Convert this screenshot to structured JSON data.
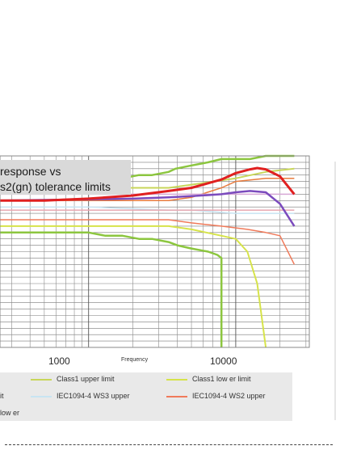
{
  "title_lines": [
    "response vs",
    "s2(gn) tolerance limits"
  ],
  "axis": {
    "xlabel": "Frequency",
    "x_ticks": [
      "1000",
      "10000"
    ]
  },
  "legend": [
    {
      "label": "Class1 upper limit",
      "color": "#c8d65a"
    },
    {
      "label": "Class1 low er limit",
      "color": "#d6e34a"
    },
    {
      "label": "IEC1094-4 WS3 upper",
      "color": "#c8e4f2"
    },
    {
      "label": "IEC1094-4 WS2 upper",
      "color": "#f07a5a"
    },
    {
      "label": "it",
      "color": ""
    },
    {
      "label": "low er",
      "color": ""
    }
  ],
  "chart_data": {
    "type": "line",
    "title": "response vs s2(gn) tolerance limits",
    "xlabel": "Frequency",
    "ylabel": "",
    "x_scale": "log",
    "xlim": [
      250,
      31623
    ],
    "ylim": [
      -20,
      10
    ],
    "grid": true,
    "series": [
      {
        "name": "",
        "color": "#8cc63f",
        "width": 2.5,
        "x": [
          250,
          900,
          1000,
          1300,
          1700,
          2200,
          2700,
          3500,
          3900,
          5000,
          6500,
          8000,
          10000,
          12500,
          16000,
          25000
        ],
        "y": [
          6,
          6,
          6,
          6.5,
          6.5,
          7,
          7,
          7.5,
          8,
          8.5,
          9,
          9.5,
          9.5,
          9.5,
          10,
          10
        ]
      },
      {
        "name": "",
        "color": "#8cc63f",
        "width": 2.5,
        "x": [
          250,
          900,
          1000,
          1300,
          1700,
          2200,
          2700,
          3500,
          4000,
          5000,
          6500,
          7500,
          8000,
          8000
        ],
        "y": [
          -2,
          -2,
          -2,
          -2.5,
          -2.5,
          -3,
          -3,
          -3.5,
          -4,
          -4.5,
          -5,
          -5.5,
          -6,
          -20
        ]
      },
      {
        "name": "Class1 upper limit",
        "color": "#c8d65a",
        "width": 2,
        "x": [
          250,
          3500,
          5000,
          10000,
          16000,
          25000
        ],
        "y": [
          5,
          5,
          5.5,
          6.5,
          7.5,
          8
        ]
      },
      {
        "name": "Class1 low er limit",
        "color": "#d6e34a",
        "width": 2,
        "x": [
          250,
          3500,
          5000,
          8000,
          10000,
          12000,
          14000,
          16000
        ],
        "y": [
          -1,
          -1,
          -1.5,
          -2.5,
          -3,
          -5,
          -10,
          -20
        ]
      },
      {
        "name": "IEC1094-4 WS3 upper",
        "color": "#c8e4f2",
        "width": 1.5,
        "x": [
          250,
          1000,
          3500,
          5000,
          10000,
          16000,
          25000
        ],
        "y": [
          2,
          2,
          1.5,
          1.5,
          1,
          1,
          1
        ]
      },
      {
        "name": "IEC1094-4 WS2 upper",
        "color": "#f07a5a",
        "width": 1.5,
        "x": [
          250,
          3500,
          5000,
          8000,
          12000,
          16000,
          20000,
          25000
        ],
        "y": [
          0,
          0,
          -0.5,
          -1,
          -1.5,
          -2,
          -2.5,
          -7
        ]
      },
      {
        "name": "",
        "color": "#e87b3e",
        "width": 1.5,
        "x": [
          250,
          3500,
          5000,
          8000,
          10000,
          16000,
          25000
        ],
        "y": [
          3,
          3,
          3.5,
          5,
          6,
          6.5,
          6.5
        ]
      },
      {
        "name": "",
        "color": "#d7a8d6",
        "width": 1.5,
        "x": [
          250,
          1000,
          3500,
          5000,
          10000,
          16000,
          25000
        ],
        "y": [
          4,
          4,
          4,
          4,
          4,
          4,
          4
        ]
      },
      {
        "name": "",
        "color": "#e8a7b1",
        "width": 1.5,
        "x": [
          250,
          1000,
          3500,
          5000,
          10000,
          16000,
          25000
        ],
        "y": [
          1.5,
          1.5,
          1.5,
          1.5,
          1.5,
          1.5,
          1.5
        ]
      },
      {
        "name": "",
        "color": "#7b4bbd",
        "width": 2.5,
        "x": [
          250,
          1000,
          2000,
          3500,
          5000,
          8000,
          10000,
          12500,
          16000,
          20000,
          25000
        ],
        "y": [
          3,
          3.2,
          3.3,
          3.5,
          3.7,
          4,
          4.3,
          4.5,
          4.3,
          2.5,
          -1
        ]
      },
      {
        "name": "",
        "color": "#e02020",
        "width": 3,
        "x": [
          250,
          500,
          1000,
          2000,
          3500,
          5000,
          8000,
          10000,
          12500,
          14000,
          16000,
          20000,
          25000
        ],
        "y": [
          3,
          3,
          3.3,
          3.8,
          4.5,
          5,
          6.3,
          7.3,
          7.9,
          8.1,
          7.9,
          6.8,
          4
        ]
      }
    ]
  }
}
